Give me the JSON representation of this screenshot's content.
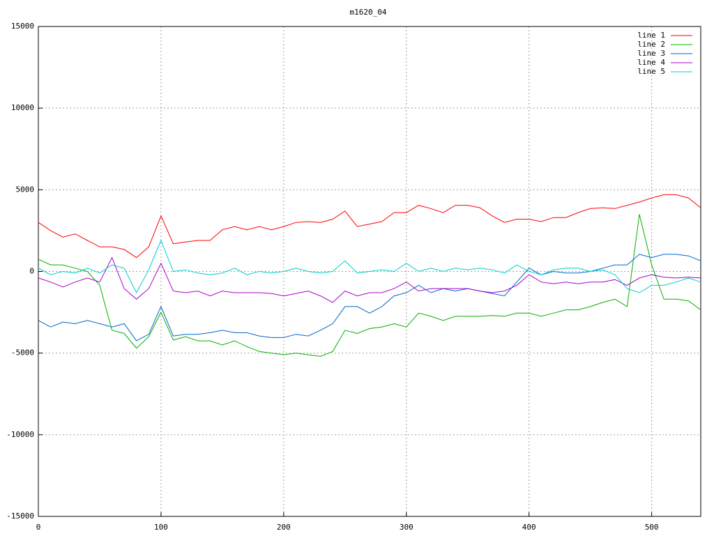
{
  "chart_data": {
    "type": "line",
    "title": "m1620_04",
    "x": [
      0,
      10,
      20,
      30,
      40,
      50,
      60,
      70,
      80,
      90,
      100,
      110,
      120,
      130,
      140,
      150,
      160,
      170,
      180,
      190,
      200,
      210,
      220,
      230,
      240,
      250,
      260,
      270,
      280,
      290,
      300,
      310,
      320,
      330,
      340,
      350,
      360,
      370,
      380,
      390,
      400,
      410,
      420,
      430,
      440,
      450,
      460,
      470,
      480,
      490,
      500,
      510,
      520,
      530,
      540
    ],
    "series": [
      {
        "name": "line 1",
        "color": "#ff0000",
        "values": [
          3000,
          2500,
          2100,
          2300,
          1900,
          1500,
          1500,
          1350,
          850,
          1500,
          3400,
          1700,
          1800,
          1900,
          1900,
          2550,
          2750,
          2550,
          2750,
          2550,
          2750,
          3000,
          3050,
          3000,
          3200,
          3700,
          2750,
          2900,
          3050,
          3600,
          3600,
          4050,
          3850,
          3600,
          4050,
          4050,
          3900,
          3400,
          3000,
          3200,
          3200,
          3050,
          3300,
          3300,
          3600,
          3850,
          3900,
          3850,
          4050,
          4250,
          4500,
          4700,
          4700,
          4500,
          3900
        ]
      },
      {
        "name": "line 2",
        "color": "#00b000",
        "values": [
          750,
          400,
          400,
          200,
          0,
          -850,
          -3600,
          -3800,
          -4700,
          -4000,
          -2500,
          -4200,
          -4000,
          -4250,
          -4250,
          -4500,
          -4250,
          -4600,
          -4900,
          -5000,
          -5100,
          -5000,
          -5100,
          -5200,
          -4900,
          -3600,
          -3800,
          -3500,
          -3400,
          -3200,
          -3400,
          -2550,
          -2750,
          -3000,
          -2750,
          -2750,
          -2750,
          -2700,
          -2750,
          -2550,
          -2550,
          -2750,
          -2550,
          -2350,
          -2350,
          -2150,
          -1900,
          -1700,
          -2150,
          3500,
          400,
          -1700,
          -1700,
          -1800,
          -2350
        ]
      },
      {
        "name": "line 3",
        "color": "#0066cc",
        "values": [
          -3000,
          -3400,
          -3100,
          -3200,
          -3000,
          -3200,
          -3400,
          -3200,
          -4250,
          -3850,
          -2150,
          -3950,
          -3850,
          -3850,
          -3750,
          -3600,
          -3750,
          -3750,
          -3950,
          -4050,
          -4050,
          -3850,
          -3950,
          -3600,
          -3200,
          -2150,
          -2150,
          -2550,
          -2150,
          -1500,
          -1300,
          -850,
          -1300,
          -1050,
          -1200,
          -1050,
          -1200,
          -1350,
          -1500,
          -650,
          200,
          -200,
          0,
          -100,
          -100,
          0,
          200,
          400,
          400,
          1050,
          850,
          1050,
          1050,
          950,
          650
        ]
      },
      {
        "name": "line 4",
        "color": "#aa00cc",
        "values": [
          -400,
          -650,
          -950,
          -650,
          -400,
          -650,
          850,
          -1050,
          -1700,
          -1050,
          500,
          -1200,
          -1300,
          -1200,
          -1500,
          -1200,
          -1300,
          -1300,
          -1300,
          -1350,
          -1500,
          -1350,
          -1200,
          -1500,
          -1900,
          -1200,
          -1500,
          -1300,
          -1300,
          -1050,
          -650,
          -1200,
          -1050,
          -1050,
          -1050,
          -1050,
          -1200,
          -1300,
          -1200,
          -850,
          -200,
          -650,
          -750,
          -650,
          -750,
          -650,
          -650,
          -500,
          -850,
          -400,
          -200,
          -350,
          -400,
          -350,
          -400
        ]
      },
      {
        "name": "line 5",
        "color": "#00cccc",
        "values": [
          200,
          -200,
          0,
          -100,
          200,
          -100,
          400,
          200,
          -1300,
          100,
          1900,
          0,
          100,
          -100,
          -200,
          -100,
          200,
          -200,
          0,
          -100,
          0,
          200,
          0,
          -100,
          0,
          650,
          -100,
          0,
          100,
          0,
          500,
          0,
          200,
          0,
          200,
          100,
          200,
          100,
          -100,
          400,
          0,
          -200,
          100,
          200,
          200,
          0,
          100,
          -200,
          -1050,
          -1300,
          -850,
          -850,
          -650,
          -400,
          -650
        ]
      }
    ],
    "xlim": [
      0,
      540
    ],
    "xticks": [
      0,
      100,
      200,
      300,
      400,
      500
    ],
    "ylim": [
      -15000,
      15000
    ],
    "yticks": [
      -15000,
      -10000,
      -5000,
      0,
      5000,
      10000,
      15000
    ],
    "grid": true,
    "legend": "top-right"
  }
}
